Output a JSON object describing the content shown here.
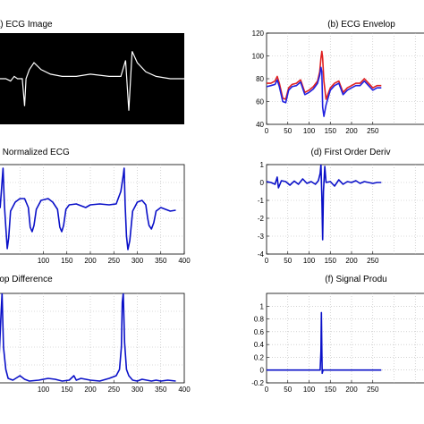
{
  "chart_data": [
    {
      "id": "a",
      "type": "image",
      "title": "(a) ECG Image",
      "background": "#000000",
      "trace_color": "#ffffff",
      "trace": [
        [
          0,
          50
        ],
        [
          20,
          50
        ],
        [
          30,
          49
        ],
        [
          38,
          51
        ],
        [
          45,
          50
        ],
        [
          55,
          50
        ],
        [
          60,
          38
        ],
        [
          63,
          50
        ],
        [
          70,
          54
        ],
        [
          80,
          57
        ],
        [
          95,
          54
        ],
        [
          115,
          52
        ],
        [
          140,
          51
        ],
        [
          170,
          51
        ],
        [
          200,
          52
        ],
        [
          240,
          51
        ],
        [
          265,
          51
        ],
        [
          275,
          58
        ],
        [
          282,
          36
        ],
        [
          289,
          62
        ],
        [
          300,
          57
        ],
        [
          318,
          53
        ],
        [
          340,
          51
        ],
        [
          370,
          50
        ],
        [
          400,
          50
        ]
      ],
      "xlim": [
        0,
        400
      ],
      "ylim": [
        30,
        70
      ]
    },
    {
      "id": "b",
      "type": "line",
      "title": "(b) ECG Envelop",
      "xlim": [
        0,
        400
      ],
      "ylim": [
        40,
        120
      ],
      "xticks": [
        0,
        50,
        100,
        150,
        200,
        250
      ],
      "yticks": [
        40,
        60,
        80,
        100,
        120
      ],
      "grid": true,
      "series": [
        {
          "color": "#e02020",
          "values": [
            [
              0,
              76
            ],
            [
              10,
              76
            ],
            [
              20,
              78
            ],
            [
              25,
              82
            ],
            [
              30,
              76
            ],
            [
              38,
              63
            ],
            [
              45,
              62
            ],
            [
              52,
              72
            ],
            [
              60,
              75
            ],
            [
              70,
              76
            ],
            [
              80,
              79
            ],
            [
              90,
              68
            ],
            [
              100,
              70
            ],
            [
              110,
              73
            ],
            [
              120,
              78
            ],
            [
              125,
              86
            ],
            [
              128,
              98
            ],
            [
              130,
              104
            ],
            [
              132,
              98
            ],
            [
              135,
              78
            ],
            [
              140,
              62
            ],
            [
              150,
              72
            ],
            [
              160,
              76
            ],
            [
              170,
              78
            ],
            [
              180,
              68
            ],
            [
              190,
              72
            ],
            [
              200,
              74
            ],
            [
              210,
              76
            ],
            [
              220,
              76
            ],
            [
              230,
              80
            ],
            [
              240,
              76
            ],
            [
              250,
              72
            ],
            [
              260,
              74
            ],
            [
              270,
              74
            ]
          ]
        },
        {
          "color": "#2020e0",
          "values": [
            [
              0,
              73
            ],
            [
              10,
              74
            ],
            [
              20,
              75
            ],
            [
              25,
              79
            ],
            [
              30,
              73
            ],
            [
              38,
              60
            ],
            [
              45,
              59
            ],
            [
              52,
              70
            ],
            [
              60,
              73
            ],
            [
              70,
              74
            ],
            [
              80,
              77
            ],
            [
              90,
              66
            ],
            [
              100,
              68
            ],
            [
              110,
              71
            ],
            [
              120,
              76
            ],
            [
              125,
              83
            ],
            [
              128,
              90
            ],
            [
              130,
              86
            ],
            [
              132,
              55
            ],
            [
              135,
              47
            ],
            [
              140,
              57
            ],
            [
              150,
              70
            ],
            [
              160,
              74
            ],
            [
              170,
              76
            ],
            [
              180,
              66
            ],
            [
              190,
              70
            ],
            [
              200,
              72
            ],
            [
              210,
              74
            ],
            [
              220,
              74
            ],
            [
              230,
              78
            ],
            [
              240,
              74
            ],
            [
              250,
              70
            ],
            [
              260,
              72
            ],
            [
              270,
              72
            ]
          ]
        }
      ]
    },
    {
      "id": "c",
      "type": "line",
      "title": "(c) Normalized ECG",
      "xlim": [
        0,
        400
      ],
      "ylim": [
        0,
        1
      ],
      "xticks": [
        100,
        150,
        200,
        250,
        300,
        350,
        400
      ],
      "yticks": [],
      "grid": true,
      "series": [
        {
          "color": "#0a10c8",
          "values": [
            [
              0,
              0.62
            ],
            [
              8,
              0.52
            ],
            [
              14,
              0.96
            ],
            [
              17,
              0.55
            ],
            [
              20,
              0.3
            ],
            [
              23,
              0.06
            ],
            [
              26,
              0.18
            ],
            [
              30,
              0.48
            ],
            [
              40,
              0.58
            ],
            [
              50,
              0.62
            ],
            [
              60,
              0.62
            ],
            [
              68,
              0.52
            ],
            [
              72,
              0.3
            ],
            [
              76,
              0.25
            ],
            [
              80,
              0.32
            ],
            [
              85,
              0.5
            ],
            [
              95,
              0.6
            ],
            [
              110,
              0.62
            ],
            [
              120,
              0.58
            ],
            [
              130,
              0.5
            ],
            [
              135,
              0.3
            ],
            [
              139,
              0.25
            ],
            [
              143,
              0.32
            ],
            [
              148,
              0.5
            ],
            [
              155,
              0.55
            ],
            [
              170,
              0.56
            ],
            [
              190,
              0.52
            ],
            [
              200,
              0.55
            ],
            [
              220,
              0.56
            ],
            [
              240,
              0.55
            ],
            [
              255,
              0.56
            ],
            [
              265,
              0.7
            ],
            [
              270,
              0.88
            ],
            [
              272,
              0.96
            ],
            [
              274,
              0.55
            ],
            [
              277,
              0.2
            ],
            [
              280,
              0.05
            ],
            [
              284,
              0.15
            ],
            [
              290,
              0.48
            ],
            [
              300,
              0.58
            ],
            [
              310,
              0.6
            ],
            [
              318,
              0.55
            ],
            [
              322,
              0.4
            ],
            [
              325,
              0.32
            ],
            [
              330,
              0.28
            ],
            [
              335,
              0.35
            ],
            [
              340,
              0.48
            ],
            [
              350,
              0.52
            ],
            [
              360,
              0.5
            ],
            [
              370,
              0.48
            ],
            [
              382,
              0.49
            ]
          ]
        }
      ]
    },
    {
      "id": "d",
      "type": "line",
      "title": "(d) First Order Deriv",
      "xlim": [
        0,
        400
      ],
      "ylim": [
        -4,
        1
      ],
      "xticks": [
        0,
        50,
        100,
        150,
        200,
        250
      ],
      "yticks": [
        -4,
        -3,
        -2,
        -1,
        0,
        1
      ],
      "grid": true,
      "series": [
        {
          "color": "#0a10c8",
          "values": [
            [
              0,
              0.05
            ],
            [
              10,
              0.0
            ],
            [
              20,
              -0.1
            ],
            [
              25,
              0.3
            ],
            [
              28,
              -0.3
            ],
            [
              35,
              0.1
            ],
            [
              45,
              0.05
            ],
            [
              55,
              -0.15
            ],
            [
              65,
              0.08
            ],
            [
              75,
              -0.1
            ],
            [
              85,
              0.2
            ],
            [
              95,
              -0.05
            ],
            [
              105,
              0.05
            ],
            [
              115,
              -0.1
            ],
            [
              122,
              0.1
            ],
            [
              126,
              0.5
            ],
            [
              128,
              1.0
            ],
            [
              130,
              -0.8
            ],
            [
              132,
              -3.2
            ],
            [
              134,
              -0.5
            ],
            [
              137,
              0.9
            ],
            [
              140,
              0.0
            ],
            [
              150,
              0.05
            ],
            [
              160,
              -0.2
            ],
            [
              170,
              0.15
            ],
            [
              180,
              -0.1
            ],
            [
              190,
              0.05
            ],
            [
              200,
              0.0
            ],
            [
              210,
              0.1
            ],
            [
              220,
              -0.05
            ],
            [
              230,
              0.05
            ],
            [
              240,
              0.0
            ],
            [
              250,
              -0.05
            ],
            [
              260,
              0.0
            ],
            [
              270,
              0.0
            ]
          ]
        }
      ]
    },
    {
      "id": "e",
      "type": "line",
      "title": "(e) Envelop Difference",
      "xlim": [
        0,
        400
      ],
      "ylim": [
        0,
        1
      ],
      "xticks": [
        100,
        150,
        200,
        250,
        300,
        350,
        400
      ],
      "yticks": [],
      "grid": true,
      "series": [
        {
          "color": "#0a10c8",
          "values": [
            [
              0,
              0.15
            ],
            [
              6,
              0.3
            ],
            [
              10,
              0.8
            ],
            [
              12,
              1.0
            ],
            [
              15,
              0.4
            ],
            [
              20,
              0.15
            ],
            [
              25,
              0.05
            ],
            [
              35,
              0.03
            ],
            [
              50,
              0.08
            ],
            [
              60,
              0.04
            ],
            [
              70,
              0.02
            ],
            [
              90,
              0.03
            ],
            [
              110,
              0.05
            ],
            [
              125,
              0.04
            ],
            [
              140,
              0.02
            ],
            [
              155,
              0.03
            ],
            [
              165,
              0.08
            ],
            [
              170,
              0.03
            ],
            [
              180,
              0.05
            ],
            [
              200,
              0.03
            ],
            [
              220,
              0.02
            ],
            [
              240,
              0.05
            ],
            [
              255,
              0.08
            ],
            [
              262,
              0.15
            ],
            [
              266,
              0.4
            ],
            [
              268,
              0.9
            ],
            [
              270,
              1.0
            ],
            [
              273,
              0.45
            ],
            [
              277,
              0.15
            ],
            [
              282,
              0.08
            ],
            [
              290,
              0.03
            ],
            [
              300,
              0.02
            ],
            [
              310,
              0.04
            ],
            [
              320,
              0.03
            ],
            [
              330,
              0.02
            ],
            [
              340,
              0.03
            ],
            [
              350,
              0.02
            ],
            [
              365,
              0.03
            ],
            [
              382,
              0.02
            ]
          ]
        }
      ]
    },
    {
      "id": "f",
      "type": "line",
      "title": "(f) Signal Produ",
      "xlim": [
        0,
        400
      ],
      "ylim": [
        -0.2,
        1.2
      ],
      "xticks": [
        0,
        50,
        100,
        150,
        200,
        250
      ],
      "yticks": [
        -0.2,
        0,
        0.2,
        0.4,
        0.6,
        0.8,
        1
      ],
      "grid": true,
      "series": [
        {
          "color": "#0a10c8",
          "values": [
            [
              0,
              0
            ],
            [
              120,
              0
            ],
            [
              126,
              0.0
            ],
            [
              128,
              0.3
            ],
            [
              129,
              0.9
            ],
            [
              130,
              0.3
            ],
            [
              131,
              -0.05
            ],
            [
              133,
              0
            ],
            [
              140,
              0
            ],
            [
              200,
              0
            ],
            [
              270,
              0
            ]
          ]
        }
      ]
    }
  ]
}
